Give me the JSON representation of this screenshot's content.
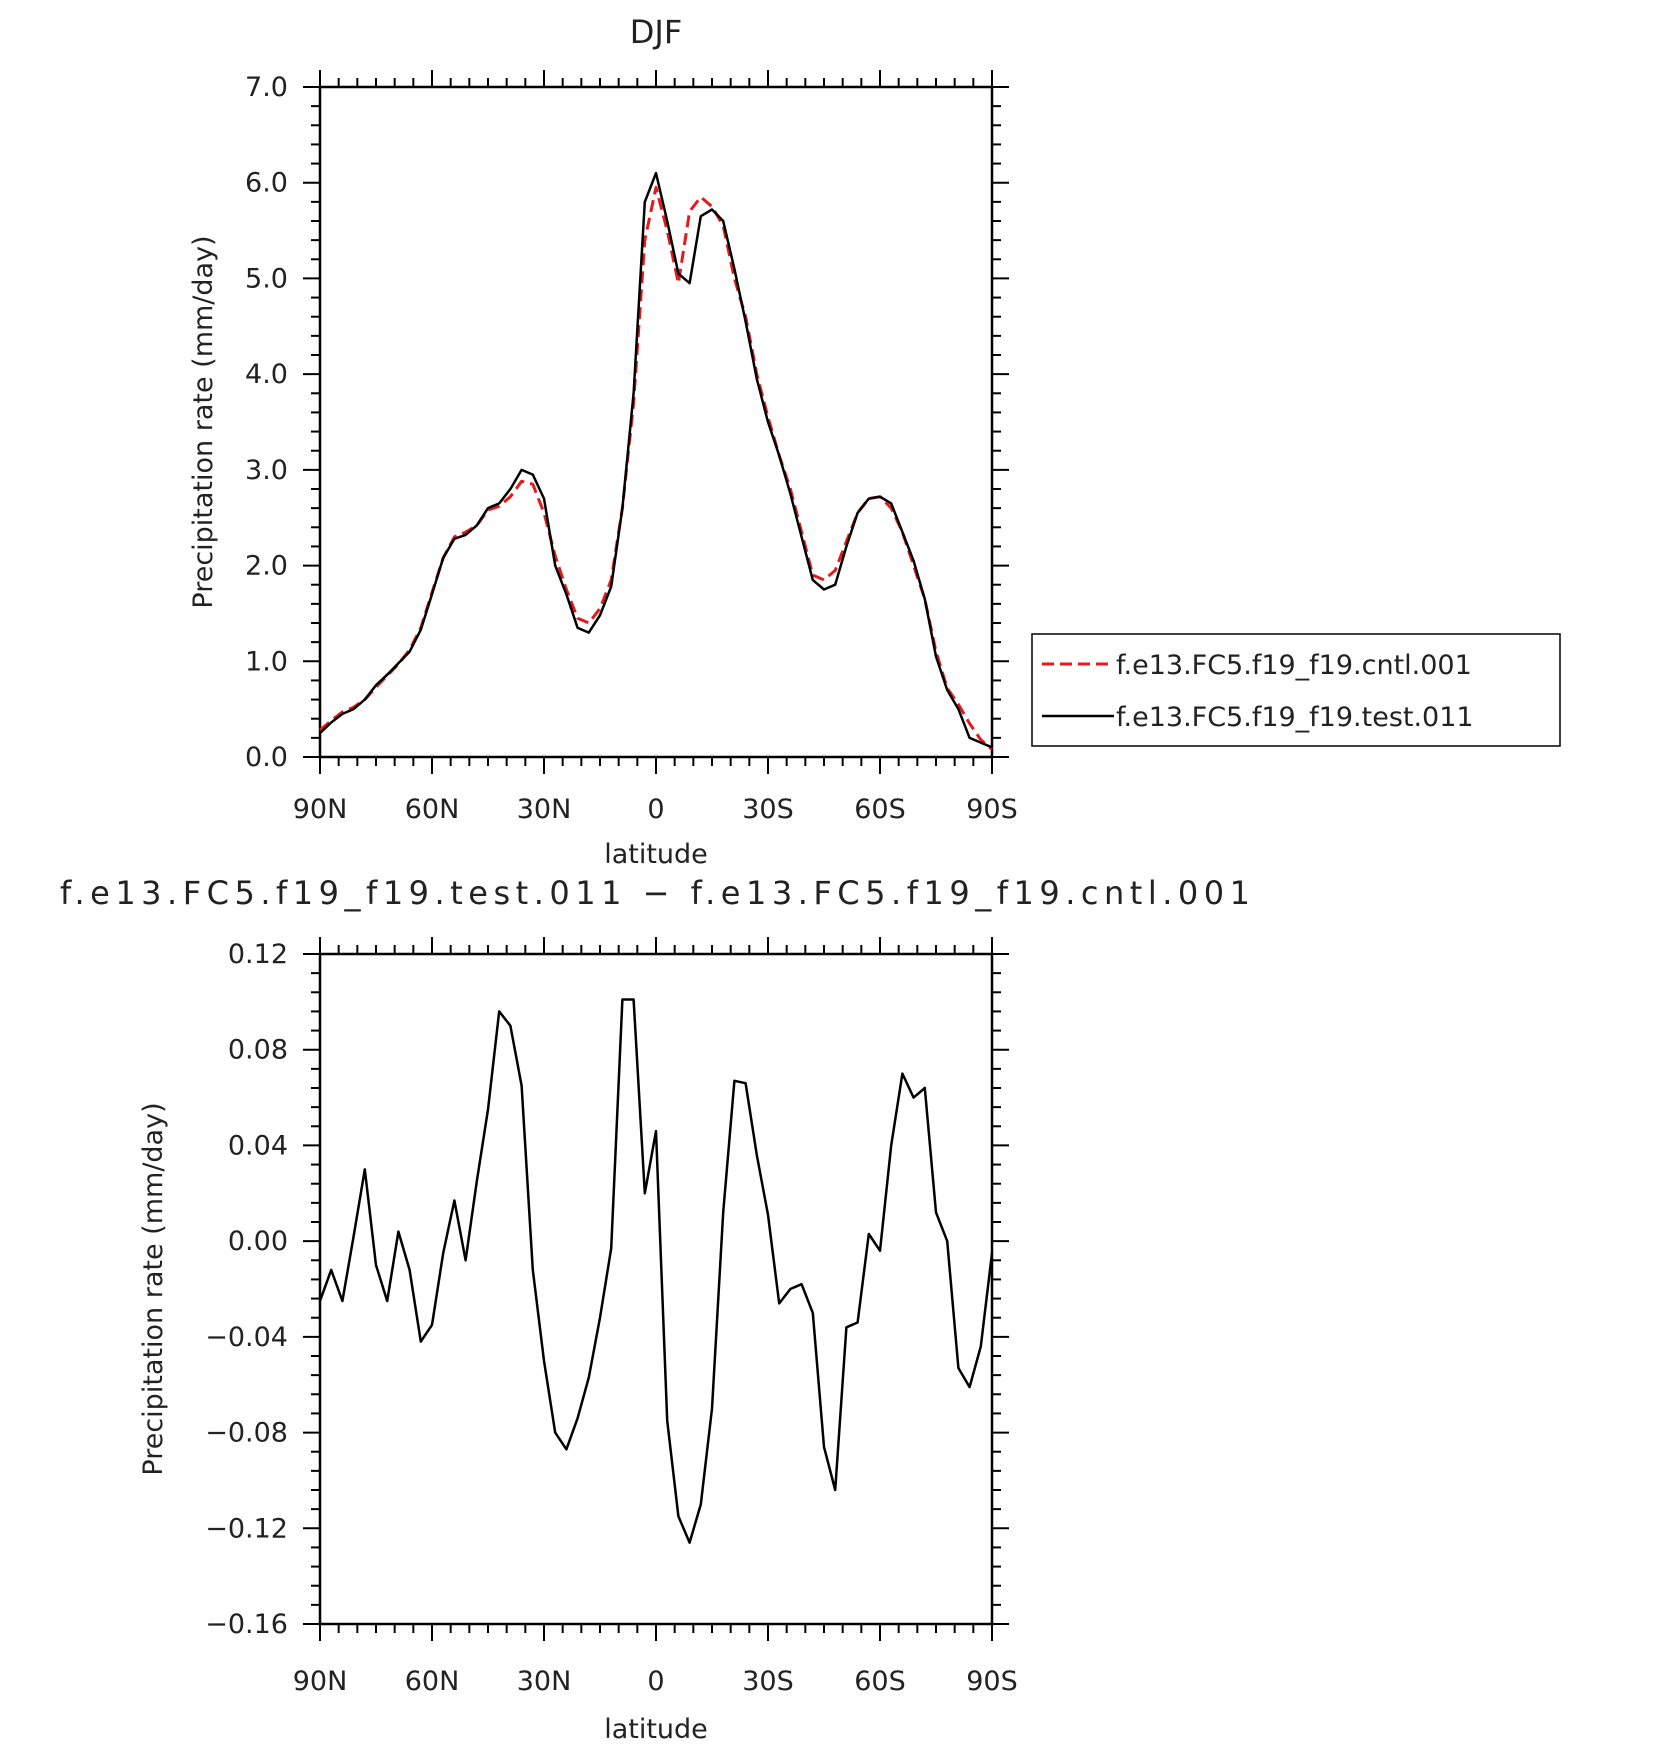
{
  "chart_data": [
    {
      "type": "line",
      "title": "DJF",
      "xlabel": "latitude",
      "ylabel": "Precipitation rate (mm/day)",
      "xlim": [
        90,
        -90
      ],
      "ylim": [
        0.0,
        7.0
      ],
      "x_tick_values": [
        90,
        60,
        30,
        0,
        -30,
        -60,
        -90
      ],
      "x_tick_labels": [
        "90N",
        "60N",
        "30N",
        "0",
        "30S",
        "60S",
        "90S"
      ],
      "y_tick_values": [
        0,
        1,
        2,
        3,
        4,
        5,
        6,
        7
      ],
      "y_tick_labels": [
        "0.0",
        "1.0",
        "2.0",
        "3.0",
        "4.0",
        "5.0",
        "6.0",
        "7.0"
      ],
      "grid": false,
      "legend_position": "right",
      "series": [
        {
          "name": "f.e13.FC5.f19_f19.cntl.001",
          "color": "#e41a1c",
          "style": "dashed",
          "x": [
            90,
            87,
            84,
            81,
            78,
            75,
            72,
            69,
            66,
            63,
            60,
            57,
            54,
            51,
            48,
            45,
            42,
            39,
            36,
            33,
            30,
            27,
            24,
            21,
            18,
            15,
            12,
            9,
            6,
            3,
            0,
            -3,
            -6,
            -9,
            -12,
            -15,
            -18,
            -21,
            -24,
            -27,
            -30,
            -33,
            -36,
            -39,
            -42,
            -45,
            -48,
            -51,
            -54,
            -57,
            -60,
            -63,
            -66,
            -69,
            -72,
            -75,
            -78,
            -81,
            -84,
            -87,
            -90
          ],
          "y": [
            0.28,
            0.38,
            0.47,
            0.52,
            0.6,
            0.73,
            0.85,
            0.97,
            1.12,
            1.35,
            1.72,
            2.08,
            2.3,
            2.35,
            2.42,
            2.58,
            2.62,
            2.72,
            2.88,
            2.85,
            2.55,
            2.1,
            1.75,
            1.45,
            1.4,
            1.55,
            1.85,
            2.6,
            3.7,
            5.4,
            5.95,
            5.5,
            4.95,
            5.7,
            5.85,
            5.75,
            5.55,
            5.0,
            4.6,
            4.0,
            3.55,
            3.15,
            2.8,
            2.35,
            1.9,
            1.85,
            1.95,
            2.25,
            2.55,
            2.7,
            2.72,
            2.6,
            2.35,
            2.0,
            1.65,
            1.1,
            0.72,
            0.55,
            0.35,
            0.18,
            0.08
          ]
        },
        {
          "name": "f.e13.FC5.f19_f19.test.011",
          "color": "#000000",
          "style": "solid",
          "x": [
            90,
            87,
            84,
            81,
            78,
            75,
            72,
            69,
            66,
            63,
            60,
            57,
            54,
            51,
            48,
            45,
            42,
            39,
            36,
            33,
            30,
            27,
            24,
            21,
            18,
            15,
            12,
            9,
            6,
            3,
            0,
            -3,
            -6,
            -9,
            -12,
            -15,
            -18,
            -21,
            -24,
            -27,
            -30,
            -33,
            -36,
            -39,
            -42,
            -45,
            -48,
            -51,
            -54,
            -57,
            -60,
            -63,
            -66,
            -69,
            -72,
            -75,
            -78,
            -81,
            -84,
            -87,
            -90
          ],
          "y": [
            0.25,
            0.36,
            0.45,
            0.5,
            0.6,
            0.75,
            0.86,
            0.98,
            1.1,
            1.33,
            1.7,
            2.08,
            2.28,
            2.32,
            2.42,
            2.6,
            2.65,
            2.8,
            3.0,
            2.95,
            2.7,
            2.0,
            1.7,
            1.35,
            1.3,
            1.48,
            1.78,
            2.6,
            3.8,
            5.8,
            6.1,
            5.6,
            5.05,
            4.95,
            5.65,
            5.72,
            5.6,
            5.1,
            4.55,
            3.95,
            3.5,
            3.15,
            2.75,
            2.3,
            1.85,
            1.75,
            1.8,
            2.2,
            2.55,
            2.7,
            2.72,
            2.65,
            2.35,
            2.05,
            1.65,
            1.05,
            0.7,
            0.5,
            0.2,
            0.15,
            0.1
          ]
        }
      ]
    },
    {
      "type": "line",
      "title": "f.e13.FC5.f19_f19.test.011 − f.e13.FC5.f19_f19.cntl.001",
      "xlabel": "latitude",
      "ylabel": "Precipitation rate (mm/day)",
      "xlim": [
        90,
        -90
      ],
      "ylim": [
        -0.16,
        0.12
      ],
      "x_tick_values": [
        90,
        60,
        30,
        0,
        -30,
        -60,
        -90
      ],
      "x_tick_labels": [
        "90N",
        "60N",
        "30N",
        "0",
        "30S",
        "60S",
        "90S"
      ],
      "y_tick_values": [
        0.12,
        0.08,
        0.04,
        0.0,
        -0.04,
        -0.08,
        -0.12,
        -0.16
      ],
      "y_tick_labels": [
        "0.12",
        "0.08",
        "0.04",
        "0.00",
        "−0.04",
        "−0.08",
        "−0.12",
        "−0.16"
      ],
      "grid": false,
      "series": [
        {
          "color": "#000000",
          "style": "solid",
          "x": [
            90,
            87,
            84,
            81,
            78,
            75,
            72,
            69,
            66,
            63,
            60,
            57,
            54,
            51,
            48,
            45,
            42,
            39,
            36,
            33,
            30,
            27,
            24,
            21,
            18,
            15,
            12,
            9,
            6,
            3,
            0,
            -3,
            -6,
            -9,
            -12,
            -15,
            -18,
            -21,
            -24,
            -27,
            -30,
            -33,
            -36,
            -39,
            -42,
            -45,
            -48,
            -51,
            -54,
            -57,
            -60,
            -63,
            -66,
            -69,
            -72,
            -75,
            -78,
            -81,
            -84,
            -87,
            -90
          ],
          "y": [
            -0.025,
            -0.012,
            -0.025,
            0.002,
            0.03,
            -0.01,
            -0.025,
            0.004,
            -0.012,
            -0.042,
            -0.035,
            -0.005,
            0.017,
            -0.008,
            0.025,
            0.055,
            0.096,
            0.09,
            0.065,
            -0.012,
            -0.05,
            -0.08,
            -0.087,
            -0.074,
            -0.057,
            -0.032,
            -0.003,
            0.101,
            0.101,
            0.02,
            0.046,
            -0.075,
            -0.115,
            -0.126,
            -0.11,
            -0.07,
            0.012,
            0.067,
            0.066,
            0.036,
            0.011,
            -0.026,
            -0.02,
            -0.018,
            -0.03,
            -0.086,
            -0.104,
            -0.036,
            -0.034,
            0.003,
            -0.004,
            0.04,
            0.07,
            0.06,
            0.064,
            0.012,
            0.0,
            -0.053,
            -0.061,
            -0.044,
            -0.005
          ]
        }
      ]
    }
  ]
}
